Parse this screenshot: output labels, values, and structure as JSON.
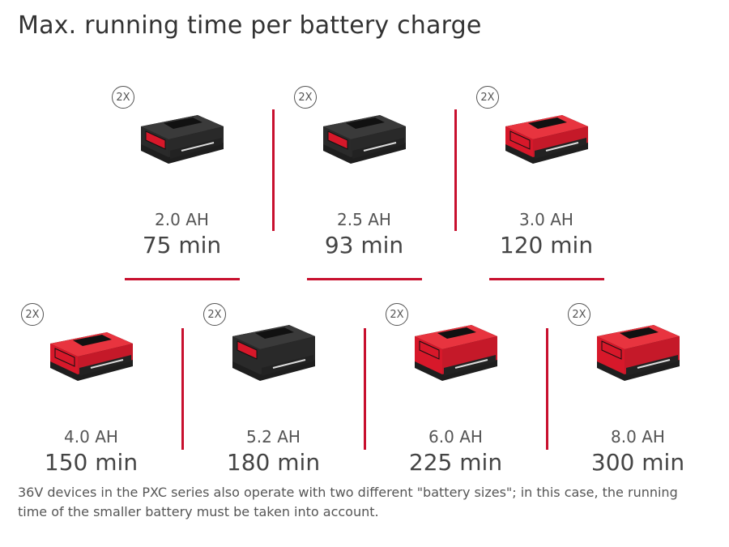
{
  "title": "Max. running time per battery charge",
  "badge_label": "2X",
  "colors": {
    "accent": "#c8102e",
    "battery_red": "#d7182a",
    "battery_black": "#2a2a2a"
  },
  "batteries": [
    {
      "capacity": "2.0 AH",
      "runtime": "75 min",
      "style": "black"
    },
    {
      "capacity": "2.5 AH",
      "runtime": "93 min",
      "style": "black"
    },
    {
      "capacity": "3.0 AH",
      "runtime": "120 min",
      "style": "red"
    },
    {
      "capacity": "4.0 AH",
      "runtime": "150 min",
      "style": "red"
    },
    {
      "capacity": "5.2 AH",
      "runtime": "180 min",
      "style": "black-large"
    },
    {
      "capacity": "6.0 AH",
      "runtime": "225 min",
      "style": "red-large"
    },
    {
      "capacity": "8.0 AH",
      "runtime": "300 min",
      "style": "red-large"
    }
  ],
  "footnote": "36V devices in the PXC series also operate with two different \"battery sizes\"; in this case, the running time of the smaller battery must be taken into account."
}
